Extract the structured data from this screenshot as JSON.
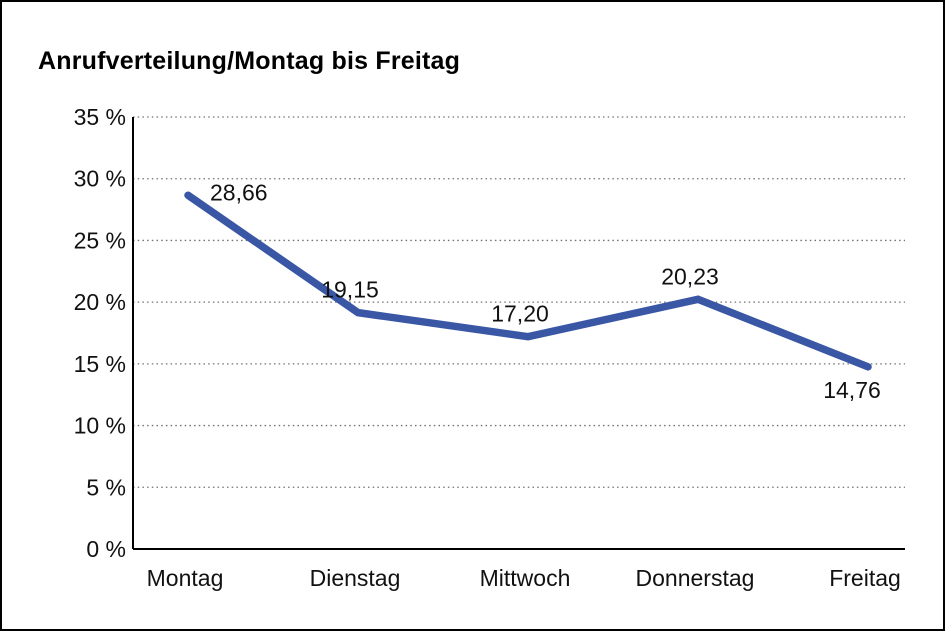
{
  "chart_data": {
    "type": "line",
    "title": "Anrufverteilung/Montag bis Freitag",
    "categories": [
      "Montag",
      "Dienstag",
      "Mittwoch",
      "Donnerstag",
      "Freitag"
    ],
    "values": [
      28.66,
      19.15,
      17.2,
      20.23,
      14.76
    ],
    "value_labels": [
      "28,66",
      "19,15",
      "17,20",
      "20,23",
      "14,76"
    ],
    "y_tick_values": [
      0,
      5,
      10,
      15,
      20,
      25,
      30,
      35
    ],
    "y_tick_labels": [
      "0 %",
      "5 %",
      "10 %",
      "15 %",
      "20 %",
      "25 %",
      "30 %",
      "35 %"
    ],
    "ylim": [
      0,
      35
    ],
    "xlabel": "",
    "ylabel": "",
    "grid": "horizontal-dotted",
    "legend": "none",
    "label_placement": [
      "right",
      "above",
      "above",
      "above",
      "below"
    ],
    "colors": {
      "line": "#3A57A6",
      "axis": "#000000",
      "gridline": "#707070",
      "text": "#111111",
      "background": "#ffffff",
      "frame_border": "#000000"
    }
  }
}
